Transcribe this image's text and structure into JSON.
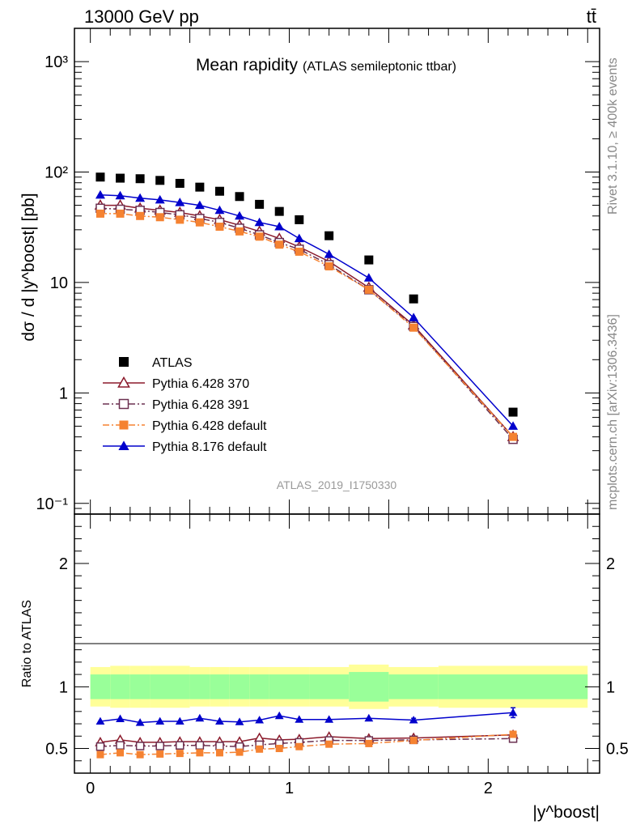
{
  "header": {
    "energy_label": "13000 GeV pp",
    "process_label": "tt̄"
  },
  "side_labels": {
    "rivet": "Rivet 3.1.10, ≥ 400k events",
    "mcplots": "mcplots.cern.ch [arXiv:1306.3436]"
  },
  "chart_data": [
    {
      "type": "scatter",
      "panel": "main",
      "title": "Mean rapidity",
      "subtitle": "(ATLAS semileptonic ttbar)",
      "analysis_label": "ATLAS_2019_I1750330",
      "ylabel": "dσ / d |y^boost| [pb]",
      "y_scale": "log",
      "xlim": [
        -0.08,
        2.56
      ],
      "ylim": [
        0.08,
        2000
      ],
      "y_ticks": [
        "10⁻¹",
        "1",
        "10",
        "10²",
        "10³"
      ],
      "legend_placement": "bottom-left",
      "x": [
        0.05,
        0.15,
        0.25,
        0.35,
        0.45,
        0.55,
        0.65,
        0.75,
        0.85,
        0.95,
        1.05,
        1.2,
        1.4,
        1.625,
        2.125
      ],
      "series": [
        {
          "name": "ATLAS",
          "color": "#000000",
          "marker": "square",
          "values": [
            90,
            88,
            87,
            84,
            79,
            73,
            67,
            60,
            51,
            44,
            37,
            26.5,
            16,
            7.1,
            0.67
          ]
        },
        {
          "name": "Pythia 6.428 370",
          "color": "#8b1a2b",
          "marker": "open-triangle",
          "line": "solid",
          "values": [
            50,
            50,
            47,
            45,
            43,
            40,
            37,
            33,
            29,
            25,
            21,
            15.5,
            9,
            4.1,
            0.4
          ]
        },
        {
          "name": "Pythia 6.428 391",
          "color": "#6b3050",
          "marker": "open-square",
          "line": "dashdot",
          "values": [
            47,
            46,
            45,
            43,
            41,
            38,
            35,
            31,
            27,
            23,
            20,
            14.5,
            8.6,
            4.0,
            0.38
          ]
        },
        {
          "name": "Pythia 6.428 default",
          "color": "#f58231",
          "marker": "filled-square",
          "line": "dashdot",
          "values": [
            42,
            42,
            40,
            39,
            37,
            35,
            32,
            29,
            26,
            22,
            19,
            14,
            8.6,
            3.9,
            0.4
          ]
        },
        {
          "name": "Pythia 8.176 default",
          "color": "#0000cc",
          "marker": "filled-triangle",
          "line": "solid",
          "values": [
            62,
            61,
            58,
            56,
            53,
            50,
            45,
            40,
            35,
            32,
            25,
            18,
            11,
            4.8,
            0.5
          ]
        }
      ]
    },
    {
      "type": "line",
      "panel": "ratio",
      "ylabel": "Ratio to ATLAS",
      "xlabel": "|y^boost|",
      "xlim": [
        -0.08,
        2.56
      ],
      "ylim": [
        0.3,
        2.4
      ],
      "x_ticks": [
        "0",
        "1",
        "2"
      ],
      "y_ticks": [
        "0.5",
        "1",
        "2"
      ],
      "bin_edges": [
        0.0,
        0.1,
        0.2,
        0.3,
        0.4,
        0.5,
        0.6,
        0.7,
        0.8,
        0.9,
        1.0,
        1.1,
        1.3,
        1.5,
        1.75,
        2.5
      ],
      "band_green": {
        "low": [
          0.9,
          0.9,
          0.9,
          0.9,
          0.9,
          0.9,
          0.9,
          0.9,
          0.9,
          0.9,
          0.9,
          0.9,
          0.88,
          0.9,
          0.9
        ],
        "high": [
          1.1,
          1.1,
          1.1,
          1.1,
          1.1,
          1.1,
          1.1,
          1.1,
          1.1,
          1.1,
          1.1,
          1.1,
          1.12,
          1.1,
          1.1
        ]
      },
      "band_yellow": {
        "low": [
          0.84,
          0.83,
          0.83,
          0.83,
          0.83,
          0.84,
          0.84,
          0.84,
          0.84,
          0.84,
          0.84,
          0.84,
          0.82,
          0.84,
          0.83
        ],
        "high": [
          1.16,
          1.17,
          1.17,
          1.17,
          1.17,
          1.16,
          1.16,
          1.16,
          1.16,
          1.16,
          1.16,
          1.16,
          1.18,
          1.16,
          1.17
        ]
      },
      "x": [
        0.05,
        0.15,
        0.25,
        0.35,
        0.45,
        0.55,
        0.65,
        0.75,
        0.85,
        0.95,
        1.05,
        1.2,
        1.4,
        1.625,
        2.125
      ],
      "series": [
        {
          "name": "Pythia 8.176 default",
          "color": "#0000cc",
          "marker": "filled-triangle",
          "line": "solid",
          "values": [
            0.72,
            0.74,
            0.71,
            0.72,
            0.72,
            0.745,
            0.72,
            0.715,
            0.73,
            0.765,
            0.735,
            0.735,
            0.745,
            0.73,
            0.79
          ],
          "err": [
            0,
            0,
            0,
            0,
            0,
            0,
            0,
            0,
            0,
            0,
            0,
            0,
            0,
            0.015,
            0.04
          ]
        },
        {
          "name": "Pythia 6.428 370",
          "color": "#8b1a2b",
          "marker": "open-triangle",
          "line": "solid",
          "values": [
            0.55,
            0.57,
            0.55,
            0.55,
            0.555,
            0.555,
            0.555,
            0.555,
            0.585,
            0.57,
            0.575,
            0.595,
            0.58,
            0.585,
            0.61
          ]
        },
        {
          "name": "Pythia 6.428 391",
          "color": "#6b3050",
          "marker": "open-square",
          "line": "dashdot",
          "values": [
            0.515,
            0.525,
            0.52,
            0.52,
            0.525,
            0.525,
            0.52,
            0.515,
            0.53,
            0.54,
            0.55,
            0.565,
            0.565,
            0.57,
            0.58
          ]
        },
        {
          "name": "Pythia 6.428 default",
          "color": "#f58231",
          "marker": "filled-square",
          "line": "dashdot",
          "values": [
            0.45,
            0.465,
            0.45,
            0.455,
            0.46,
            0.465,
            0.465,
            0.47,
            0.495,
            0.5,
            0.515,
            0.535,
            0.54,
            0.565,
            0.615
          ]
        }
      ]
    }
  ]
}
